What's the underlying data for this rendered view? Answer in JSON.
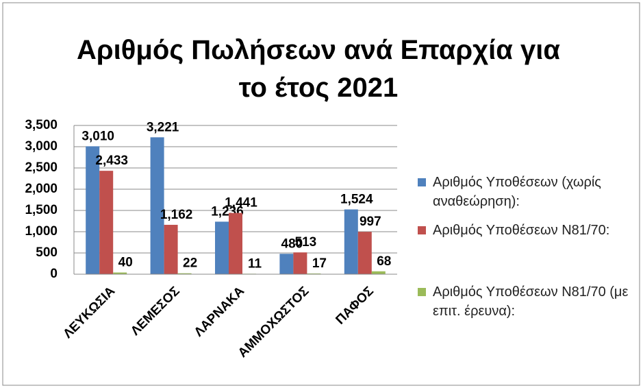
{
  "chart_data": {
    "type": "bar",
    "title": "Αριθμός Πωλήσεων ανά Επαρχία για το έτος 2021",
    "categories": [
      "ΛΕΥΚΩΣΙΑ",
      "ΛΕΜΕΣΟΣ",
      "ΛΑΡΝΑΚΑ",
      "ΑΜΜΟΧΩΣΤΟΣ",
      "ΠΑΦΟΣ"
    ],
    "series": [
      {
        "name": "Αριθμός Υποθέσεων (χωρίς αναθεώρηση):",
        "color": "#4f81bd",
        "values": [
          3010,
          3221,
          1236,
          480,
          1524
        ],
        "value_labels": [
          "3,010",
          "3,221",
          "1,236",
          "480",
          "1,524"
        ]
      },
      {
        "name": "Αριθμός Υποθέσεων N81/70:",
        "color": "#c0504d",
        "values": [
          2433,
          1162,
          1441,
          513,
          997
        ],
        "value_labels": [
          "2,433",
          "1,162",
          "1,441",
          "513",
          "997"
        ]
      },
      {
        "name": "Αριθμός Υποθέσεων N81/70 (με επιτ. έρευνα):",
        "color": "#9bbb59",
        "values": [
          40,
          22,
          11,
          17,
          68
        ]
      }
    ],
    "ylim": [
      0,
      3500
    ],
    "yticks": [
      0,
      {
        "value": 500,
        "label": "500"
      },
      {
        "value": 1000,
        "label": "1,000"
      },
      {
        "value": 1500,
        "label": "1,500"
      },
      {
        "value": 2000,
        "label": "2,000"
      },
      {
        "value": 2500,
        "label": "2,500"
      },
      {
        "value": 3000,
        "label": "3,000"
      },
      {
        "value": 3500,
        "label": "3,500"
      }
    ],
    "grid": true,
    "legend": "right"
  }
}
